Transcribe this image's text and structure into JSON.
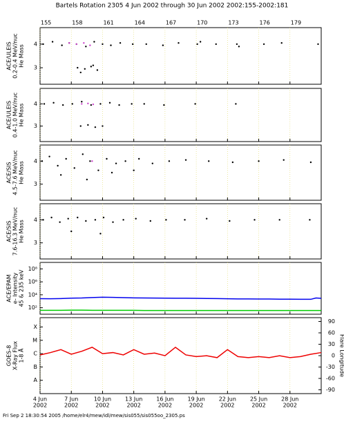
{
  "title": "Bartels Rotation 2305    4 Jun 2002 through 30 Jun 2002    2002:155-2002:181",
  "footer": "Fri Sep  2 18:30:54 2005    /home/elr4/mew/idl/mew/sis055/sis055oo_2305.ps",
  "chart_data": [
    {
      "type": "scatter",
      "ylabel": [
        "ACE/ULEIS",
        "0.2-0.4 MeV/nuc",
        "He Mass"
      ],
      "xlim": [
        155,
        182
      ],
      "xticks": [
        155,
        158,
        161,
        164,
        167,
        170,
        173,
        176,
        179
      ],
      "ylim": [
        2.3,
        4.7
      ],
      "yticks": [
        3,
        4
      ],
      "grid": true,
      "series": [
        {
          "color": "#000000",
          "x": [
            155.3,
            156.2,
            157.1,
            157.8,
            158.5,
            159.4,
            160.2,
            161.0,
            161.8,
            162.7,
            163.9,
            165.2,
            166.8,
            168.3,
            170.1,
            170.4,
            171.9,
            173.9,
            174.1,
            176.5,
            178.2,
            181.7,
            158.6,
            159.3,
            159.9,
            160.5,
            158.9,
            160.1
          ],
          "values": [
            4.0,
            4.1,
            3.95,
            4.05,
            4.0,
            3.9,
            4.1,
            4.0,
            3.95,
            4.05,
            4.0,
            4.0,
            3.95,
            4.05,
            4.0,
            4.1,
            4.0,
            4.0,
            3.9,
            4.0,
            4.05,
            4.0,
            3.0,
            2.95,
            3.05,
            2.9,
            2.8,
            3.1
          ]
        },
        {
          "color": "#cc44cc",
          "x": [
            157.8,
            158.5,
            159.2,
            159.8
          ],
          "values": [
            4.05,
            4.0,
            4.05,
            3.95
          ]
        }
      ]
    },
    {
      "type": "scatter",
      "ylabel": [
        "ACE/ULEIS",
        "0.4-1.0 MeV/nuc",
        "He Mass"
      ],
      "xlim": [
        155,
        182
      ],
      "xticks": [
        155,
        158,
        161,
        164,
        167,
        170,
        173,
        176,
        179
      ],
      "ylim": [
        2.3,
        4.7
      ],
      "yticks": [
        3,
        4
      ],
      "grid": true,
      "series": [
        {
          "color": "#000000",
          "x": [
            155.4,
            156.3,
            157.2,
            158.1,
            159.0,
            159.9,
            160.8,
            161.7,
            162.6,
            163.8,
            165.0,
            166.9,
            169.9,
            173.8,
            158.9,
            159.6,
            160.3,
            161.0
          ],
          "values": [
            4.0,
            4.05,
            3.95,
            4.0,
            4.1,
            3.95,
            4.0,
            4.05,
            3.95,
            4.0,
            4.0,
            3.95,
            4.0,
            4.0,
            3.0,
            3.05,
            2.95,
            3.0
          ]
        },
        {
          "color": "#cc44cc",
          "x": [
            159.0,
            159.6,
            160.1
          ],
          "values": [
            4.0,
            4.02,
            3.98
          ]
        }
      ]
    },
    {
      "type": "scatter",
      "ylabel": [
        "ACE/SIS",
        "4.5-7.6 MeV/nuc",
        "He Mass"
      ],
      "xlim": [
        155,
        182
      ],
      "xticks": [
        155,
        158,
        161,
        164,
        167,
        170,
        173,
        176,
        179
      ],
      "ylim": [
        2.3,
        4.7
      ],
      "yticks": [
        3,
        4
      ],
      "grid": true,
      "series": [
        {
          "color": "#000000",
          "x": [
            155.2,
            155.9,
            156.7,
            157.5,
            158.3,
            159.1,
            159.8,
            160.6,
            161.4,
            162.3,
            163.2,
            164.5,
            165.8,
            167.4,
            169.0,
            171.2,
            173.5,
            176.0,
            178.4,
            181.0,
            157.0,
            159.5,
            161.9,
            164.0
          ],
          "values": [
            4.0,
            4.2,
            3.8,
            4.1,
            3.7,
            4.3,
            4.0,
            3.6,
            4.1,
            3.9,
            4.0,
            4.1,
            3.9,
            4.0,
            4.05,
            4.0,
            3.95,
            4.0,
            4.05,
            3.95,
            3.4,
            3.2,
            3.5,
            3.6
          ]
        },
        {
          "color": "#cc44cc",
          "x": [
            160.0
          ],
          "values": [
            4.0
          ]
        }
      ]
    },
    {
      "type": "scatter",
      "ylabel": [
        "ACE/SIS",
        "7.6-16.3 MeV/nuc",
        "He Mass"
      ],
      "xlim": [
        155,
        182
      ],
      "xticks": [
        155,
        158,
        161,
        164,
        167,
        170,
        173,
        176,
        179
      ],
      "ylim": [
        2.3,
        4.7
      ],
      "yticks": [
        3,
        4
      ],
      "grid": true,
      "series": [
        {
          "color": "#000000",
          "x": [
            155.3,
            156.1,
            156.9,
            157.7,
            158.6,
            159.4,
            160.3,
            161.1,
            162.0,
            163.0,
            164.2,
            165.6,
            167.1,
            168.9,
            171.0,
            173.2,
            175.6,
            178.0,
            180.9,
            158.0,
            160.8
          ],
          "values": [
            4.0,
            4.1,
            3.9,
            4.05,
            4.1,
            3.95,
            4.0,
            4.1,
            3.9,
            4.0,
            4.05,
            3.95,
            4.0,
            4.0,
            4.05,
            3.95,
            4.0,
            4.0,
            4.0,
            3.5,
            3.4
          ]
        }
      ]
    },
    {
      "type": "line",
      "ylabel": [
        "ACE/EPAM",
        "e- Intensity",
        "45 & 235 keV"
      ],
      "ylog": true,
      "xlim": [
        155,
        182
      ],
      "xticks": [
        155,
        158,
        161,
        164,
        167,
        170,
        173,
        176,
        179
      ],
      "ylim": [
        10,
        1000000000
      ],
      "yticks": [
        {
          "value": 100000000,
          "label": "10⁸"
        },
        {
          "value": 1000000,
          "label": "10⁶"
        },
        {
          "value": 10000,
          "label": "10⁴"
        },
        {
          "value": 100,
          "label": "10²"
        }
      ],
      "grid": true,
      "x": [
        155,
        156,
        157,
        158,
        159,
        160,
        161,
        162,
        163,
        164,
        165,
        166,
        167,
        168,
        169,
        170,
        171,
        172,
        173,
        174,
        175,
        176,
        177,
        178,
        179,
        180,
        181,
        181.5,
        182
      ],
      "series": [
        {
          "color": "#0000ee",
          "values": [
            2500,
            2400,
            2600,
            3000,
            3200,
            3800,
            4200,
            4000,
            3600,
            3300,
            3200,
            3100,
            3000,
            2900,
            2900,
            2800,
            2700,
            2600,
            2400,
            2300,
            2300,
            2200,
            2200,
            2100,
            2100,
            2000,
            2000,
            3200,
            2800
          ]
        },
        {
          "color": "#00cc00",
          "values": [
            40,
            40,
            40,
            42,
            42,
            40,
            40,
            40,
            40,
            40,
            38,
            38,
            38,
            38,
            38,
            38,
            38,
            38,
            38,
            38,
            38,
            38,
            38,
            38,
            38,
            38,
            38,
            38,
            38
          ]
        }
      ]
    },
    {
      "type": "line",
      "ylabel": [
        "GOES-8",
        "X-Ray Flux",
        "1-8 Å"
      ],
      "y2label": "Flare Longitude",
      "ylog": true,
      "xlim": [
        155,
        182
      ],
      "xticks": [
        {
          "value": 155,
          "label": "4 Jun",
          "sublabel": "2002"
        },
        {
          "value": 158,
          "label": "7 Jun",
          "sublabel": "2002"
        },
        {
          "value": 161,
          "label": "10 Jun",
          "sublabel": "2002"
        },
        {
          "value": 164,
          "label": "13 Jun",
          "sublabel": "2002"
        },
        {
          "value": 167,
          "label": "16 Jun",
          "sublabel": "2002"
        },
        {
          "value": 170,
          "label": "19 Jun",
          "sublabel": "2002"
        },
        {
          "value": 173,
          "label": "22 Jun",
          "sublabel": "2002"
        },
        {
          "value": 176,
          "label": "25 Jun",
          "sublabel": "2002"
        },
        {
          "value": 179,
          "label": "28 Jun",
          "sublabel": "2002"
        }
      ],
      "ylim": [
        1e-09,
        0.0005
      ],
      "yticks": [
        {
          "value": 0.0001,
          "label": "X"
        },
        {
          "value": 1e-05,
          "label": "M"
        },
        {
          "value": 1e-06,
          "label": "C"
        },
        {
          "value": 1e-07,
          "label": "B"
        },
        {
          "value": 1e-08,
          "label": "A"
        }
      ],
      "y2lim": [
        -100,
        100
      ],
      "y2ticks": [
        90,
        60,
        30,
        0,
        -30,
        -60,
        -90
      ],
      "grid": true,
      "x": [
        155,
        156,
        157,
        158,
        159,
        160,
        161,
        162,
        163,
        164,
        165,
        166,
        167,
        168,
        169,
        170,
        171,
        172,
        173,
        174,
        175,
        176,
        177,
        178,
        179,
        180,
        181,
        182
      ],
      "series": [
        {
          "color": "#ee0000",
          "values": [
            8e-07,
            1.2e-06,
            2e-06,
            9e-07,
            1.5e-06,
            3e-06,
            1e-06,
            1.2e-06,
            8e-07,
            2e-06,
            9e-07,
            1.1e-06,
            7e-07,
            3e-06,
            8e-07,
            6e-07,
            7e-07,
            5e-07,
            2e-06,
            6e-07,
            5e-07,
            6e-07,
            5e-07,
            7e-07,
            5e-07,
            6e-07,
            9e-07,
            1.2e-06
          ]
        }
      ]
    }
  ]
}
